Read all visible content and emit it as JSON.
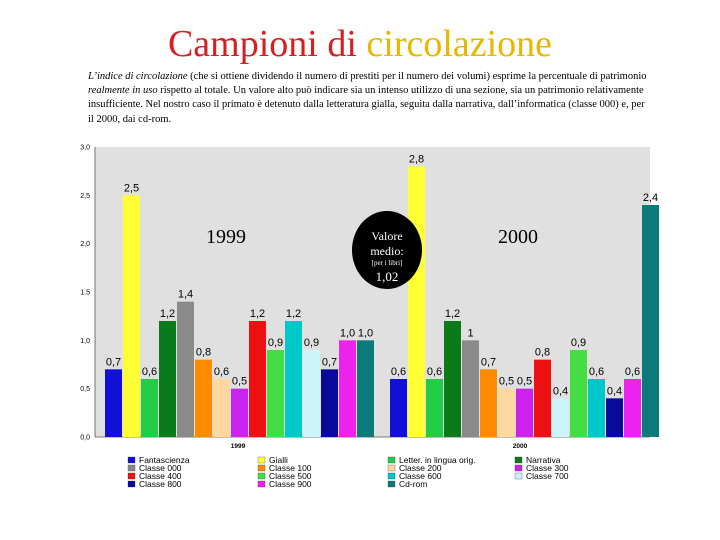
{
  "title": {
    "part1": "Campioni di",
    "part2": "circolazione"
  },
  "intro": {
    "term": "L’indice di circolazione",
    "t1": " (che si ottiene dividendo il numero di prestiti per il numero dei volumi) esprime la percentuale di patrimonio ",
    "emph": "realmente in uso",
    "t2": " rispetto al totale. Un valore alto può indicare sia un intenso utilizzo di una sezione, sia un patrimonio relativamente insufficiente. Nel nostro caso il primato è detenuto dalla letteratura gialla, seguita dalla narrativa, dall’informatica (classe 000) e, per il 2000, dai cd-rom."
  },
  "big_years": {
    "y1999": "1999",
    "y2000": "2000"
  },
  "average": {
    "line1": "Valore",
    "line2": "medio:",
    "note": "[per i libri]",
    "value": "1,02"
  },
  "colors": {
    "Fantascienza": "#1010d8",
    "Gialli": "#ffff33",
    "Letter. in lingua orig.": "#22cc44",
    "Narrativa": "#0a7a1a",
    "Classe 000": "#8a8a8a",
    "Classe 100": "#ff8c00",
    "Classe 200": "#ffd8a0",
    "Classe 300": "#cc22ee",
    "Classe 400": "#ee1111",
    "Classe 500": "#44dd44",
    "Classe 600": "#00c8c8",
    "Classe 700": "#ccf4fa",
    "Classe 800": "#0a0a9a",
    "Classe 900": "#ee22ee",
    "Cd-rom": "#0a7a7a"
  },
  "chart_data": {
    "type": "bar",
    "title": "",
    "xlabel": "",
    "ylabel": "",
    "ylim": [
      0,
      3
    ],
    "y_ticks": [
      "0,0",
      "0,5",
      "1,0",
      "1.5",
      "2,0",
      "2,5",
      "3,0"
    ],
    "groups": [
      {
        "name": "1999",
        "bars": [
          {
            "series": "Fantascienza",
            "value": 0.7,
            "label": "0,7"
          },
          {
            "series": "Gialli",
            "value": 2.5,
            "label": "2,5"
          },
          {
            "series": "Letter. in lingua orig.",
            "value": 0.6,
            "label": "0,6"
          },
          {
            "series": "Narrativa",
            "value": 1.2,
            "label": "1,2"
          },
          {
            "series": "Classe 000",
            "value": 1.4,
            "label": "1,4"
          },
          {
            "series": "Classe 100",
            "value": 0.8,
            "label": "0,8"
          },
          {
            "series": "Classe 200",
            "value": 0.6,
            "label": "0,6"
          },
          {
            "series": "Classe 300",
            "value": 0.5,
            "label": "0,5"
          },
          {
            "series": "Classe 400",
            "value": 1.2,
            "label": "1,2"
          },
          {
            "series": "Classe 500",
            "value": 0.9,
            "label": "0,9"
          },
          {
            "series": "Classe 600",
            "value": 1.2,
            "label": "1,2"
          },
          {
            "series": "Classe 700",
            "value": 0.9,
            "label": "0,9"
          },
          {
            "series": "Classe 800",
            "value": 0.7,
            "label": "0,7"
          },
          {
            "series": "Classe 900",
            "value": 1.0,
            "label": "1,0"
          },
          {
            "series": "Cd-rom",
            "value": 1.0,
            "label": "1,0"
          }
        ]
      },
      {
        "name": "2000",
        "bars": [
          {
            "series": "Fantascienza",
            "value": 0.6,
            "label": "0,6"
          },
          {
            "series": "Gialli",
            "value": 2.8,
            "label": "2,8"
          },
          {
            "series": "Letter. in lingua orig.",
            "value": 0.6,
            "label": "0,6"
          },
          {
            "series": "Narrativa",
            "value": 1.2,
            "label": "1,2"
          },
          {
            "series": "Classe 000",
            "value": 1.0,
            "label": "1"
          },
          {
            "series": "Classe 100",
            "value": 0.7,
            "label": "0,7"
          },
          {
            "series": "Classe 200",
            "value": 0.5,
            "label": "0,5"
          },
          {
            "series": "Classe 300",
            "value": 0.5,
            "label": "0,5"
          },
          {
            "series": "Classe 400",
            "value": 0.8,
            "label": "0,8"
          },
          {
            "series": "Classe 700",
            "value": 0.4,
            "label": "0,4"
          },
          {
            "series": "Classe 500",
            "value": 0.9,
            "label": "0,9"
          },
          {
            "series": "Classe 600",
            "value": 0.6,
            "label": "0,6"
          },
          {
            "series": "Classe 800",
            "value": 0.4,
            "label": "0,4"
          },
          {
            "series": "Classe 900",
            "value": 0.6,
            "label": "0,6"
          },
          {
            "series": "Cd-rom",
            "value": 2.4,
            "label": "2,4"
          }
        ]
      }
    ],
    "legend": [
      "Fantascienza",
      "Gialli",
      "Letter. in lingua orig.",
      "Narrativa",
      "Classe 000",
      "Classe 100",
      "Classe 200",
      "Classe 300",
      "Classe 400",
      "Classe 500",
      "Classe 600",
      "Classe 700",
      "Classe 800",
      "Classe 900",
      "Cd-rom"
    ],
    "legend_position": "bottom"
  }
}
